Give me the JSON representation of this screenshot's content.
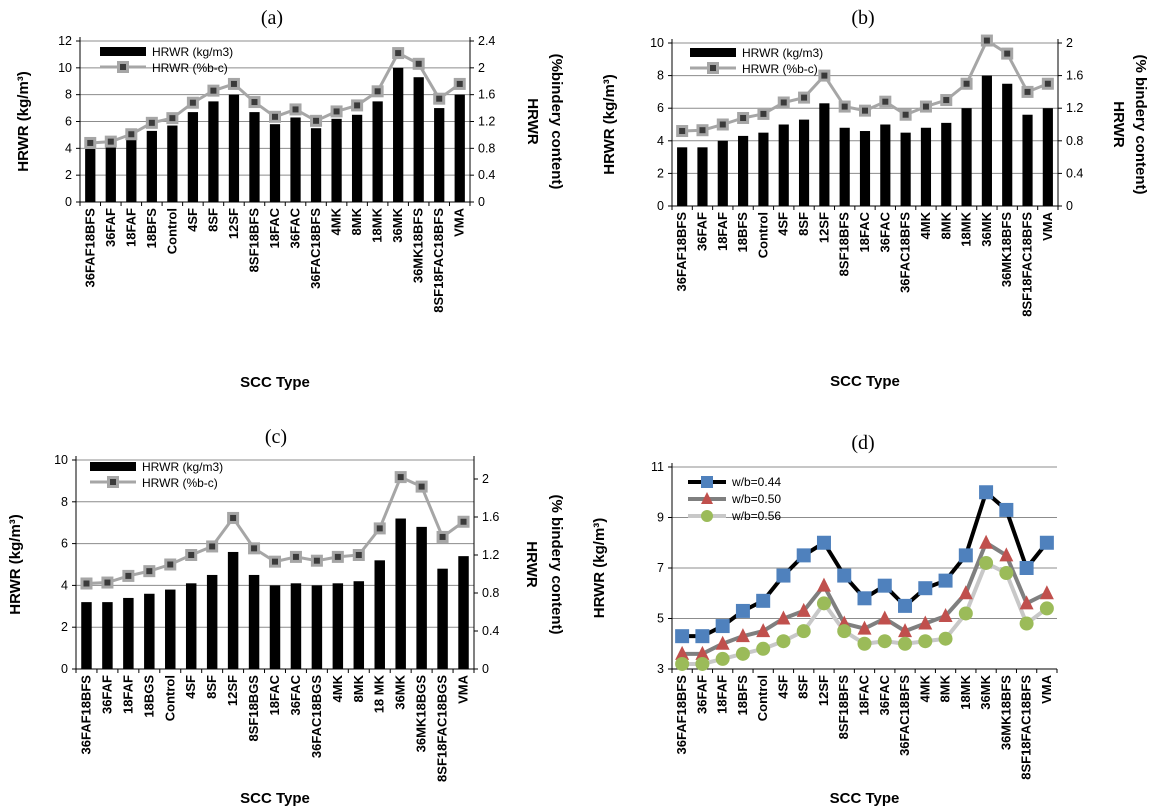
{
  "chart_data": [
    {
      "panel": "(a)",
      "type": "bar",
      "title": "(a)",
      "xlabel": "SCC Type",
      "ylabel": "HRWR (kg/m³)",
      "y2label_lines": [
        "HRWR",
        "(%bindery content)"
      ],
      "categories": [
        "36FAF18BFS",
        "36FAF",
        "18FAF",
        "18BFS",
        "Control",
        "4SF",
        "8SF",
        "12SF",
        "8SF18BFS",
        "18FAC",
        "36FAC",
        "36FAC18BFS",
        "4MK",
        "8MK",
        "18MK",
        "36MK",
        "36MK18BFS",
        "8SF18FAC18BFS",
        "VMA"
      ],
      "ylim": [
        0,
        12
      ],
      "yticks": [
        0,
        2,
        4,
        6,
        8,
        10,
        12
      ],
      "y2lim": [
        0,
        2.4
      ],
      "y2ticks": [
        "0",
        "0.4",
        "0.8",
        "1.2",
        "1.6",
        "2",
        "2.4"
      ],
      "grid": true,
      "legend_position": "top-left",
      "series": [
        {
          "name": "HRWR (kg/m3)",
          "type": "bar",
          "axis": "left",
          "values": [
            4.3,
            4.3,
            4.7,
            5.3,
            5.7,
            6.7,
            7.5,
            8.0,
            6.7,
            5.8,
            6.3,
            5.5,
            6.2,
            6.5,
            7.5,
            10.0,
            9.3,
            7.0,
            8.0
          ]
        },
        {
          "name": "HRWR (%b-c)",
          "type": "line",
          "axis": "right",
          "values": [
            0.88,
            0.9,
            1.01,
            1.18,
            1.25,
            1.48,
            1.66,
            1.76,
            1.49,
            1.27,
            1.38,
            1.21,
            1.35,
            1.44,
            1.65,
            2.22,
            2.06,
            1.54,
            1.76
          ]
        }
      ]
    },
    {
      "panel": "(b)",
      "type": "bar",
      "title": "(b)",
      "xlabel": "SCC Type",
      "ylabel": "HRWR (kg/m³)",
      "y2label_lines": [
        "HRWR",
        "(% bindery content)"
      ],
      "categories": [
        "36FAF18BFS",
        "36FAF",
        "18FAF",
        "18BFS",
        "Control",
        "4SF",
        "8SF",
        "12SF",
        "8SF18BFS",
        "18FAC",
        "36FAC",
        "36FAC18BFS",
        "4MK",
        "8MK",
        "18MK",
        "36MK",
        "36MK18BFS",
        "8SF18FAC18BFS",
        "VMA"
      ],
      "ylim": [
        0,
        10
      ],
      "yticks": [
        0,
        2,
        4,
        6,
        8,
        10
      ],
      "y2lim": [
        0,
        2
      ],
      "y2ticks": [
        "0",
        "0.4",
        "0.8",
        "1.2",
        "1.6",
        "2"
      ],
      "grid": true,
      "legend_position": "top-left",
      "series": [
        {
          "name": "HRWR (kg/m3)",
          "type": "bar",
          "axis": "left",
          "values": [
            3.6,
            3.6,
            4.0,
            4.3,
            4.5,
            5.0,
            5.3,
            6.3,
            4.8,
            4.6,
            5.0,
            4.5,
            4.8,
            5.1,
            6.0,
            8.0,
            7.5,
            5.6,
            6.0
          ]
        },
        {
          "name": "HRWR (%b-c)",
          "type": "line",
          "axis": "right",
          "values": [
            0.92,
            0.93,
            1.0,
            1.08,
            1.13,
            1.27,
            1.33,
            1.6,
            1.22,
            1.17,
            1.28,
            1.12,
            1.22,
            1.3,
            1.5,
            2.03,
            1.87,
            1.4,
            1.5
          ]
        }
      ]
    },
    {
      "panel": "(c)",
      "type": "bar",
      "title": "(c)",
      "xlabel": "SCC Type",
      "ylabel": "HRWR (kg/m³)",
      "y2label_lines": [
        "HRWR",
        "(% bindery content)"
      ],
      "categories": [
        "36FAF18BFS",
        "36FAF",
        "18FAF",
        "18BGS",
        "Control",
        "4SF",
        "8SF",
        "12SF",
        "8SF18BGS",
        "18FAC",
        "36FAC",
        "36FAC18BGS",
        "4MK",
        "8MK",
        "18 MK",
        "36MK",
        "36MK18BGS",
        "8SF18FAC18BGS",
        "VMA"
      ],
      "ylim": [
        0,
        10
      ],
      "yticks": [
        0,
        2,
        4,
        6,
        8,
        10
      ],
      "y2lim": [
        0,
        2.2
      ],
      "y2ticks": [
        "0",
        "0.4",
        "0.8",
        "1.2",
        "1.6",
        "2"
      ],
      "y2tickvalues": [
        0,
        0.4,
        0.8,
        1.2,
        1.6,
        2.0
      ],
      "grid": true,
      "legend_position": "top-left",
      "series": [
        {
          "name": "HRWR (kg/m3)",
          "type": "bar",
          "axis": "left",
          "values": [
            3.2,
            3.2,
            3.4,
            3.6,
            3.8,
            4.1,
            4.5,
            5.6,
            4.5,
            4.0,
            4.1,
            4.0,
            4.1,
            4.2,
            5.2,
            7.2,
            6.8,
            4.8,
            5.4
          ]
        },
        {
          "name": "HRWR (%b-c)",
          "type": "line",
          "axis": "right",
          "values": [
            0.9,
            0.91,
            0.98,
            1.03,
            1.1,
            1.2,
            1.29,
            1.59,
            1.27,
            1.13,
            1.18,
            1.14,
            1.18,
            1.2,
            1.48,
            2.02,
            1.92,
            1.39,
            1.55
          ]
        }
      ]
    },
    {
      "panel": "(d)",
      "type": "line",
      "title": "(d)",
      "xlabel": "SCC Type",
      "ylabel": "HRWR (kg/m³)",
      "categories": [
        "36FAF18BFS",
        "36FAF",
        "18FAF",
        "18BFS",
        "Control",
        "4SF",
        "8SF",
        "12SF",
        "8SF18BFS",
        "18FAC",
        "36FAC",
        "36FAC18BFS",
        "4MK",
        "8MK",
        "18MK",
        "36MK",
        "36MK18BFS",
        "8SF18FAC18BFS",
        "VMA"
      ],
      "ylim": [
        3,
        11
      ],
      "yticks": [
        3,
        5,
        7,
        9,
        11
      ],
      "grid": true,
      "legend_position": "top-left",
      "series": [
        {
          "name": "w/b=0.44",
          "line_color": "#000000",
          "marker": "square",
          "marker_color": "#4f81bd",
          "values": [
            4.3,
            4.3,
            4.7,
            5.3,
            5.7,
            6.7,
            7.5,
            8.0,
            6.7,
            5.8,
            6.3,
            5.5,
            6.2,
            6.5,
            7.5,
            10.0,
            9.3,
            7.0,
            8.0
          ]
        },
        {
          "name": "w/b=0.50",
          "line_color": "#7f7f7f",
          "marker": "triangle",
          "marker_color": "#c0504d",
          "values": [
            3.6,
            3.6,
            4.0,
            4.3,
            4.5,
            5.0,
            5.3,
            6.3,
            4.8,
            4.6,
            5.0,
            4.5,
            4.8,
            5.1,
            6.0,
            8.0,
            7.5,
            5.6,
            6.0
          ]
        },
        {
          "name": "w/b=0.56",
          "line_color": "#c8c8c8",
          "marker": "circle",
          "marker_color": "#9bbb59",
          "values": [
            3.2,
            3.2,
            3.4,
            3.6,
            3.8,
            4.1,
            4.5,
            5.6,
            4.5,
            4.0,
            4.1,
            4.0,
            4.1,
            4.2,
            5.2,
            7.2,
            6.8,
            4.8,
            5.4
          ]
        }
      ]
    }
  ]
}
